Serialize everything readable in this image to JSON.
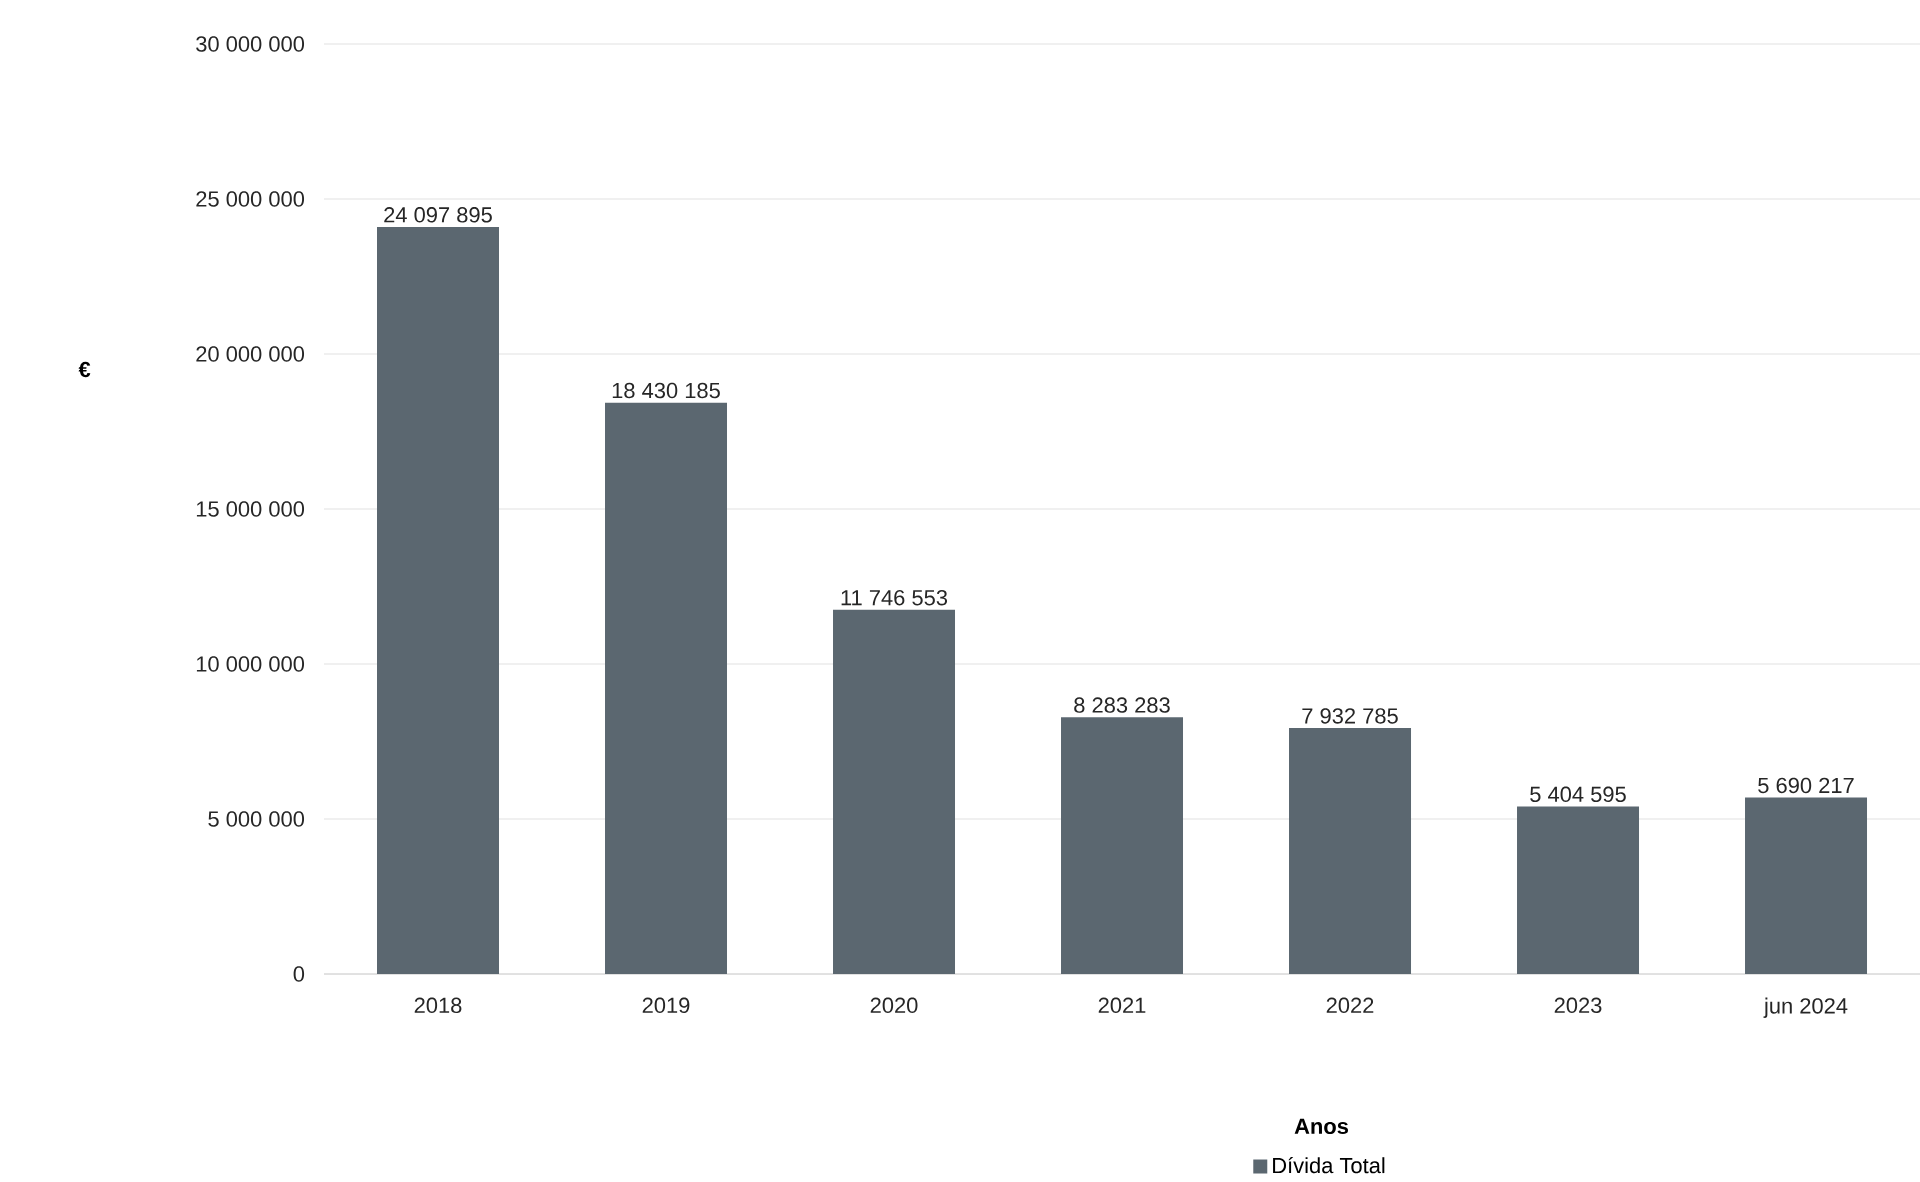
{
  "chart_data": {
    "type": "bar",
    "xlabel": "Anos",
    "ylabel": "€",
    "categories": [
      "2018",
      "2019",
      "2020",
      "2021",
      "2022",
      "2023",
      "jun 2024"
    ],
    "series": [
      {
        "name": "Dívida Total",
        "color": "#5b6770",
        "values": [
          24097895,
          18430185,
          11746553,
          8283283,
          7932785,
          5404595,
          5690217
        ],
        "value_labels": [
          "24 097 895",
          "18 430 185",
          "11 746 553",
          "8 283 283",
          "7 932 785",
          "5 404 595",
          "5 690 217"
        ]
      }
    ],
    "ylim": [
      0,
      30000000
    ],
    "yticks": [
      {
        "value": 0,
        "label": "0"
      },
      {
        "value": 5000000,
        "label": "5 000 000"
      },
      {
        "value": 10000000,
        "label": "10 000 000"
      },
      {
        "value": 15000000,
        "label": "15 000 000"
      },
      {
        "value": 20000000,
        "label": "20 000 000"
      },
      {
        "value": 25000000,
        "label": "25 000 000"
      },
      {
        "value": 30000000,
        "label": "30 000 000"
      }
    ],
    "grid": "y",
    "legend": "bottom"
  }
}
